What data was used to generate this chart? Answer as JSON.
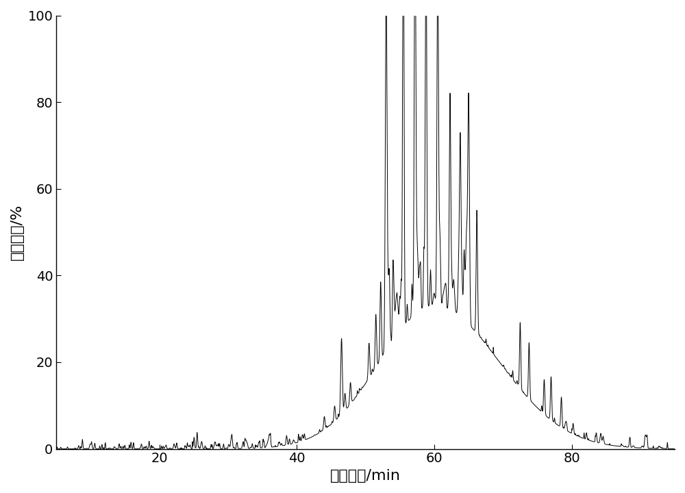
{
  "xlabel": "停留时间/min",
  "ylabel": "相对丰度/%",
  "xlim": [
    5,
    95
  ],
  "ylim": [
    0,
    100
  ],
  "xticks": [
    20,
    40,
    60,
    80
  ],
  "yticks": [
    0,
    20,
    40,
    60,
    80,
    100
  ],
  "line_color": "#000000",
  "background_color": "#ffffff",
  "xlabel_fontsize": 16,
  "ylabel_fontsize": 16,
  "tick_fontsize": 14
}
